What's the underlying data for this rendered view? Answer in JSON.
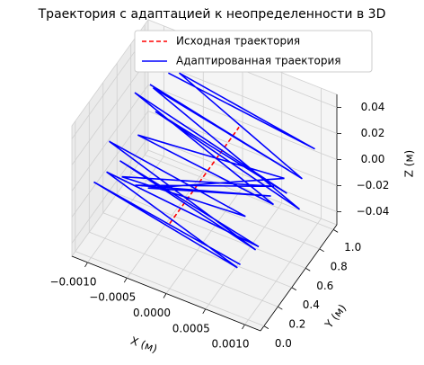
{
  "chart_data": {
    "type": "line3d",
    "title": "Траектория с адаптацией к неопределенности в 3D",
    "xlabel": "X (м)",
    "ylabel": "Y (м)",
    "zlabel": "Z (м)",
    "xlim": [
      -0.0012,
      0.0012
    ],
    "ylim": [
      -0.05,
      1.05
    ],
    "zlim": [
      -0.05,
      0.05
    ],
    "xticks": [
      {
        "value": -0.001,
        "label": "−0.0010"
      },
      {
        "value": -0.0005,
        "label": "−0.0005"
      },
      {
        "value": 0,
        "label": "0.0000"
      },
      {
        "value": 0.0005,
        "label": "0.0005"
      },
      {
        "value": 0.001,
        "label": "0.0010"
      }
    ],
    "yticks": [
      {
        "value": 0,
        "label": "0.0"
      },
      {
        "value": 0.2,
        "label": "0.2"
      },
      {
        "value": 0.4,
        "label": "0.4"
      },
      {
        "value": 0.6,
        "label": "0.6"
      },
      {
        "value": 0.8,
        "label": "0.8"
      },
      {
        "value": 1,
        "label": "1.0"
      }
    ],
    "zticks": [
      {
        "value": -0.04,
        "label": "−0.04"
      },
      {
        "value": -0.02,
        "label": "−0.02"
      },
      {
        "value": 0,
        "label": "0.00"
      },
      {
        "value": 0.02,
        "label": "0.02"
      },
      {
        "value": 0.04,
        "label": "0.04"
      }
    ],
    "grid": true,
    "legend": "upper center",
    "series": [
      {
        "name": "Исходная траектория",
        "color": "#ff0000",
        "dashed": true,
        "x": [
          0,
          0
        ],
        "y": [
          0,
          1
        ],
        "z": [
          0,
          0
        ]
      },
      {
        "name": "Адаптированная траектория",
        "color": "#0000ff",
        "dashed": false,
        "x": [
          0.0009,
          -0.001,
          0.0008,
          -0.0009,
          0.001,
          -0.0008,
          0.0009,
          -0.001,
          0.0007,
          -0.0009,
          0.001,
          -0.0008,
          0.0009,
          -0.0007,
          0.001,
          -0.0009,
          0.0008,
          -0.001,
          0.0009,
          -0.0008,
          0.001,
          -0.0009,
          0.0008,
          -0.001,
          0.0009,
          -0.0007,
          0.001,
          -0.0009
        ],
        "y": [
          0.0,
          0.04,
          0.07,
          0.11,
          0.15,
          0.19,
          0.22,
          0.26,
          0.3,
          0.33,
          0.37,
          0.41,
          0.44,
          0.48,
          0.52,
          0.56,
          0.59,
          0.63,
          0.67,
          0.7,
          0.74,
          0.78,
          0.81,
          0.85,
          0.89,
          0.93,
          0.96,
          1.0
        ],
        "z": [
          -0.01,
          0.005,
          -0.02,
          0.01,
          -0.005,
          0.015,
          -0.015,
          0.02,
          0.0,
          -0.01,
          0.025,
          -0.02,
          0.01,
          -0.025,
          0.02,
          0.005,
          -0.01,
          0.03,
          -0.005,
          0.015,
          -0.02,
          0.025,
          0.0,
          0.02,
          -0.01,
          0.03,
          0.01,
          0.02
        ]
      }
    ]
  }
}
